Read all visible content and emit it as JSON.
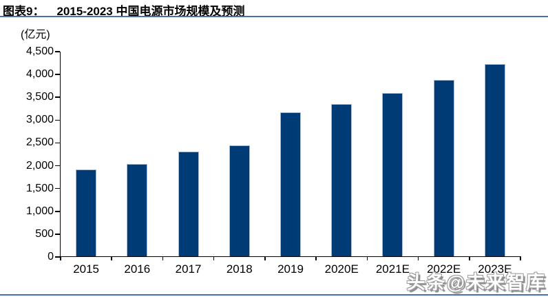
{
  "figure": {
    "label": "图表9：",
    "title": "2015-2023 中国电源市场规模及预测"
  },
  "chart_data": {
    "type": "bar",
    "title": "2015-2023 中国电源市场规模及预测",
    "unit_label": "(亿元)",
    "categories": [
      "2015",
      "2016",
      "2017",
      "2018",
      "2019",
      "2020E",
      "2021E",
      "2022E",
      "2023E"
    ],
    "values": [
      1900,
      2020,
      2290,
      2430,
      3160,
      3330,
      3580,
      3870,
      4210
    ],
    "ylim": [
      0,
      4500
    ],
    "ytick_step": 500,
    "ytick_labels": [
      "0",
      "500",
      "1,000",
      "1,500",
      "2,000",
      "2,500",
      "3,000",
      "3,500",
      "4,000",
      "4,500"
    ],
    "xlabel": "",
    "ylabel": "",
    "grid": false,
    "legend": "none",
    "bar_color": "#003b76"
  },
  "watermark": {
    "text": "头条@未来智库"
  },
  "colors": {
    "bar": "#003b76",
    "bar_edge": "#a9bbd3",
    "rule": "#4a6fa8",
    "axis": "#000000",
    "watermark_shadow": "#9a9a9a"
  }
}
